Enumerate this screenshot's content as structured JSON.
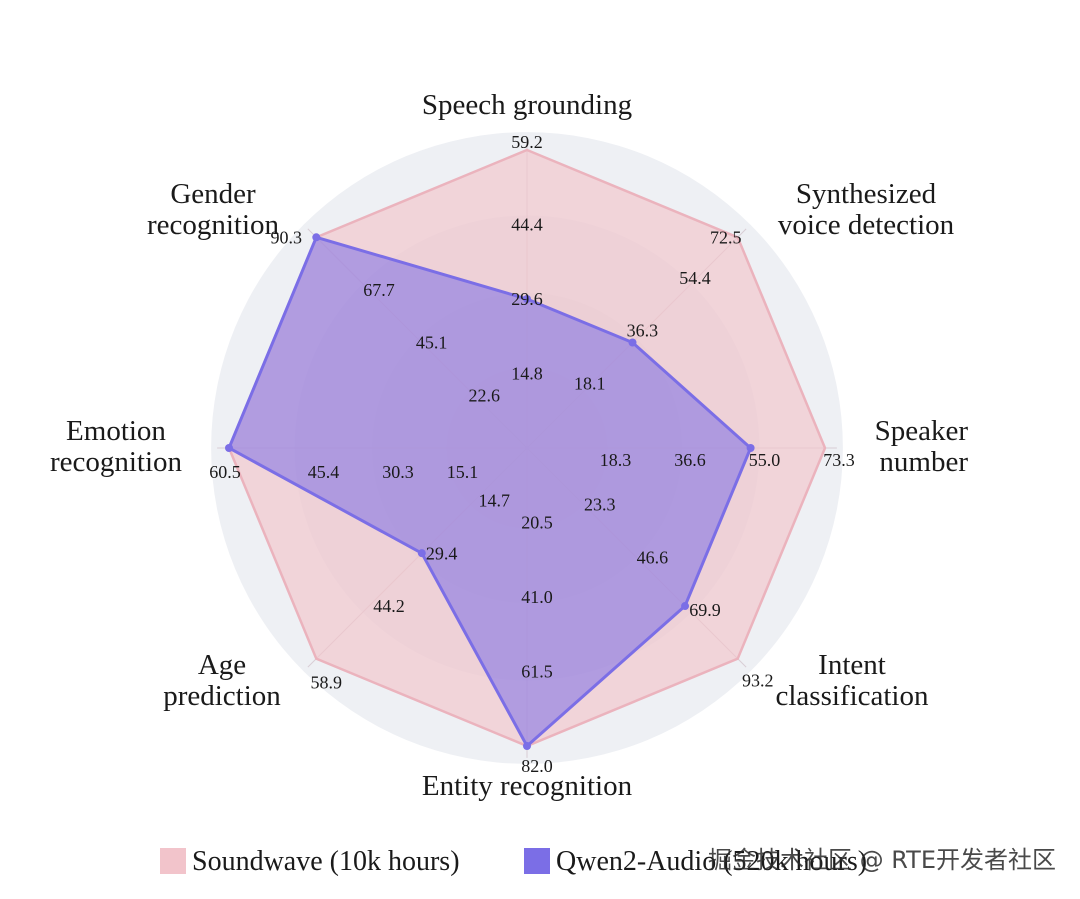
{
  "chart_data": {
    "type": "radar",
    "axes": [
      "Speech grounding",
      "Synthesized voice detection",
      "Speaker number",
      "Intent classification",
      "Entity recognition",
      "Age prediction",
      "Emotion recognition",
      "Gender recognition"
    ],
    "axis_maxima": [
      59.2,
      72.5,
      73.3,
      93.2,
      82.0,
      58.9,
      60.5,
      90.3
    ],
    "tick_labels": [
      [
        "14.8",
        "29.6",
        "44.4",
        "59.2"
      ],
      [
        "18.1",
        "36.3",
        "54.4",
        "72.5"
      ],
      [
        "18.3",
        "36.6",
        "55.0",
        "73.3"
      ],
      [
        "23.3",
        "46.6",
        "69.9",
        "93.2"
      ],
      [
        "20.5",
        "41.0",
        "61.5",
        "82.0"
      ],
      [
        "14.7",
        "29.4",
        "44.2",
        "58.9"
      ],
      [
        "15.1",
        "30.3",
        "45.4",
        "60.5"
      ],
      [
        "22.6",
        "45.1",
        "67.7",
        "90.3"
      ]
    ],
    "series": [
      {
        "name": "Soundwave (10k hours)",
        "color": "#f2c4cb",
        "values": [
          59.2,
          72.5,
          73.3,
          93.2,
          82.0,
          58.9,
          60.5,
          90.3
        ]
      },
      {
        "name": "Qwen2-Audio (520k hours)",
        "color": "#7b6ee6",
        "values": [
          29.6,
          36.3,
          55.0,
          69.9,
          82.0,
          29.4,
          60.5,
          90.3
        ]
      }
    ],
    "legend_position": "bottom"
  },
  "watermark": "掘金技术社区 @ RTE开发者社区"
}
